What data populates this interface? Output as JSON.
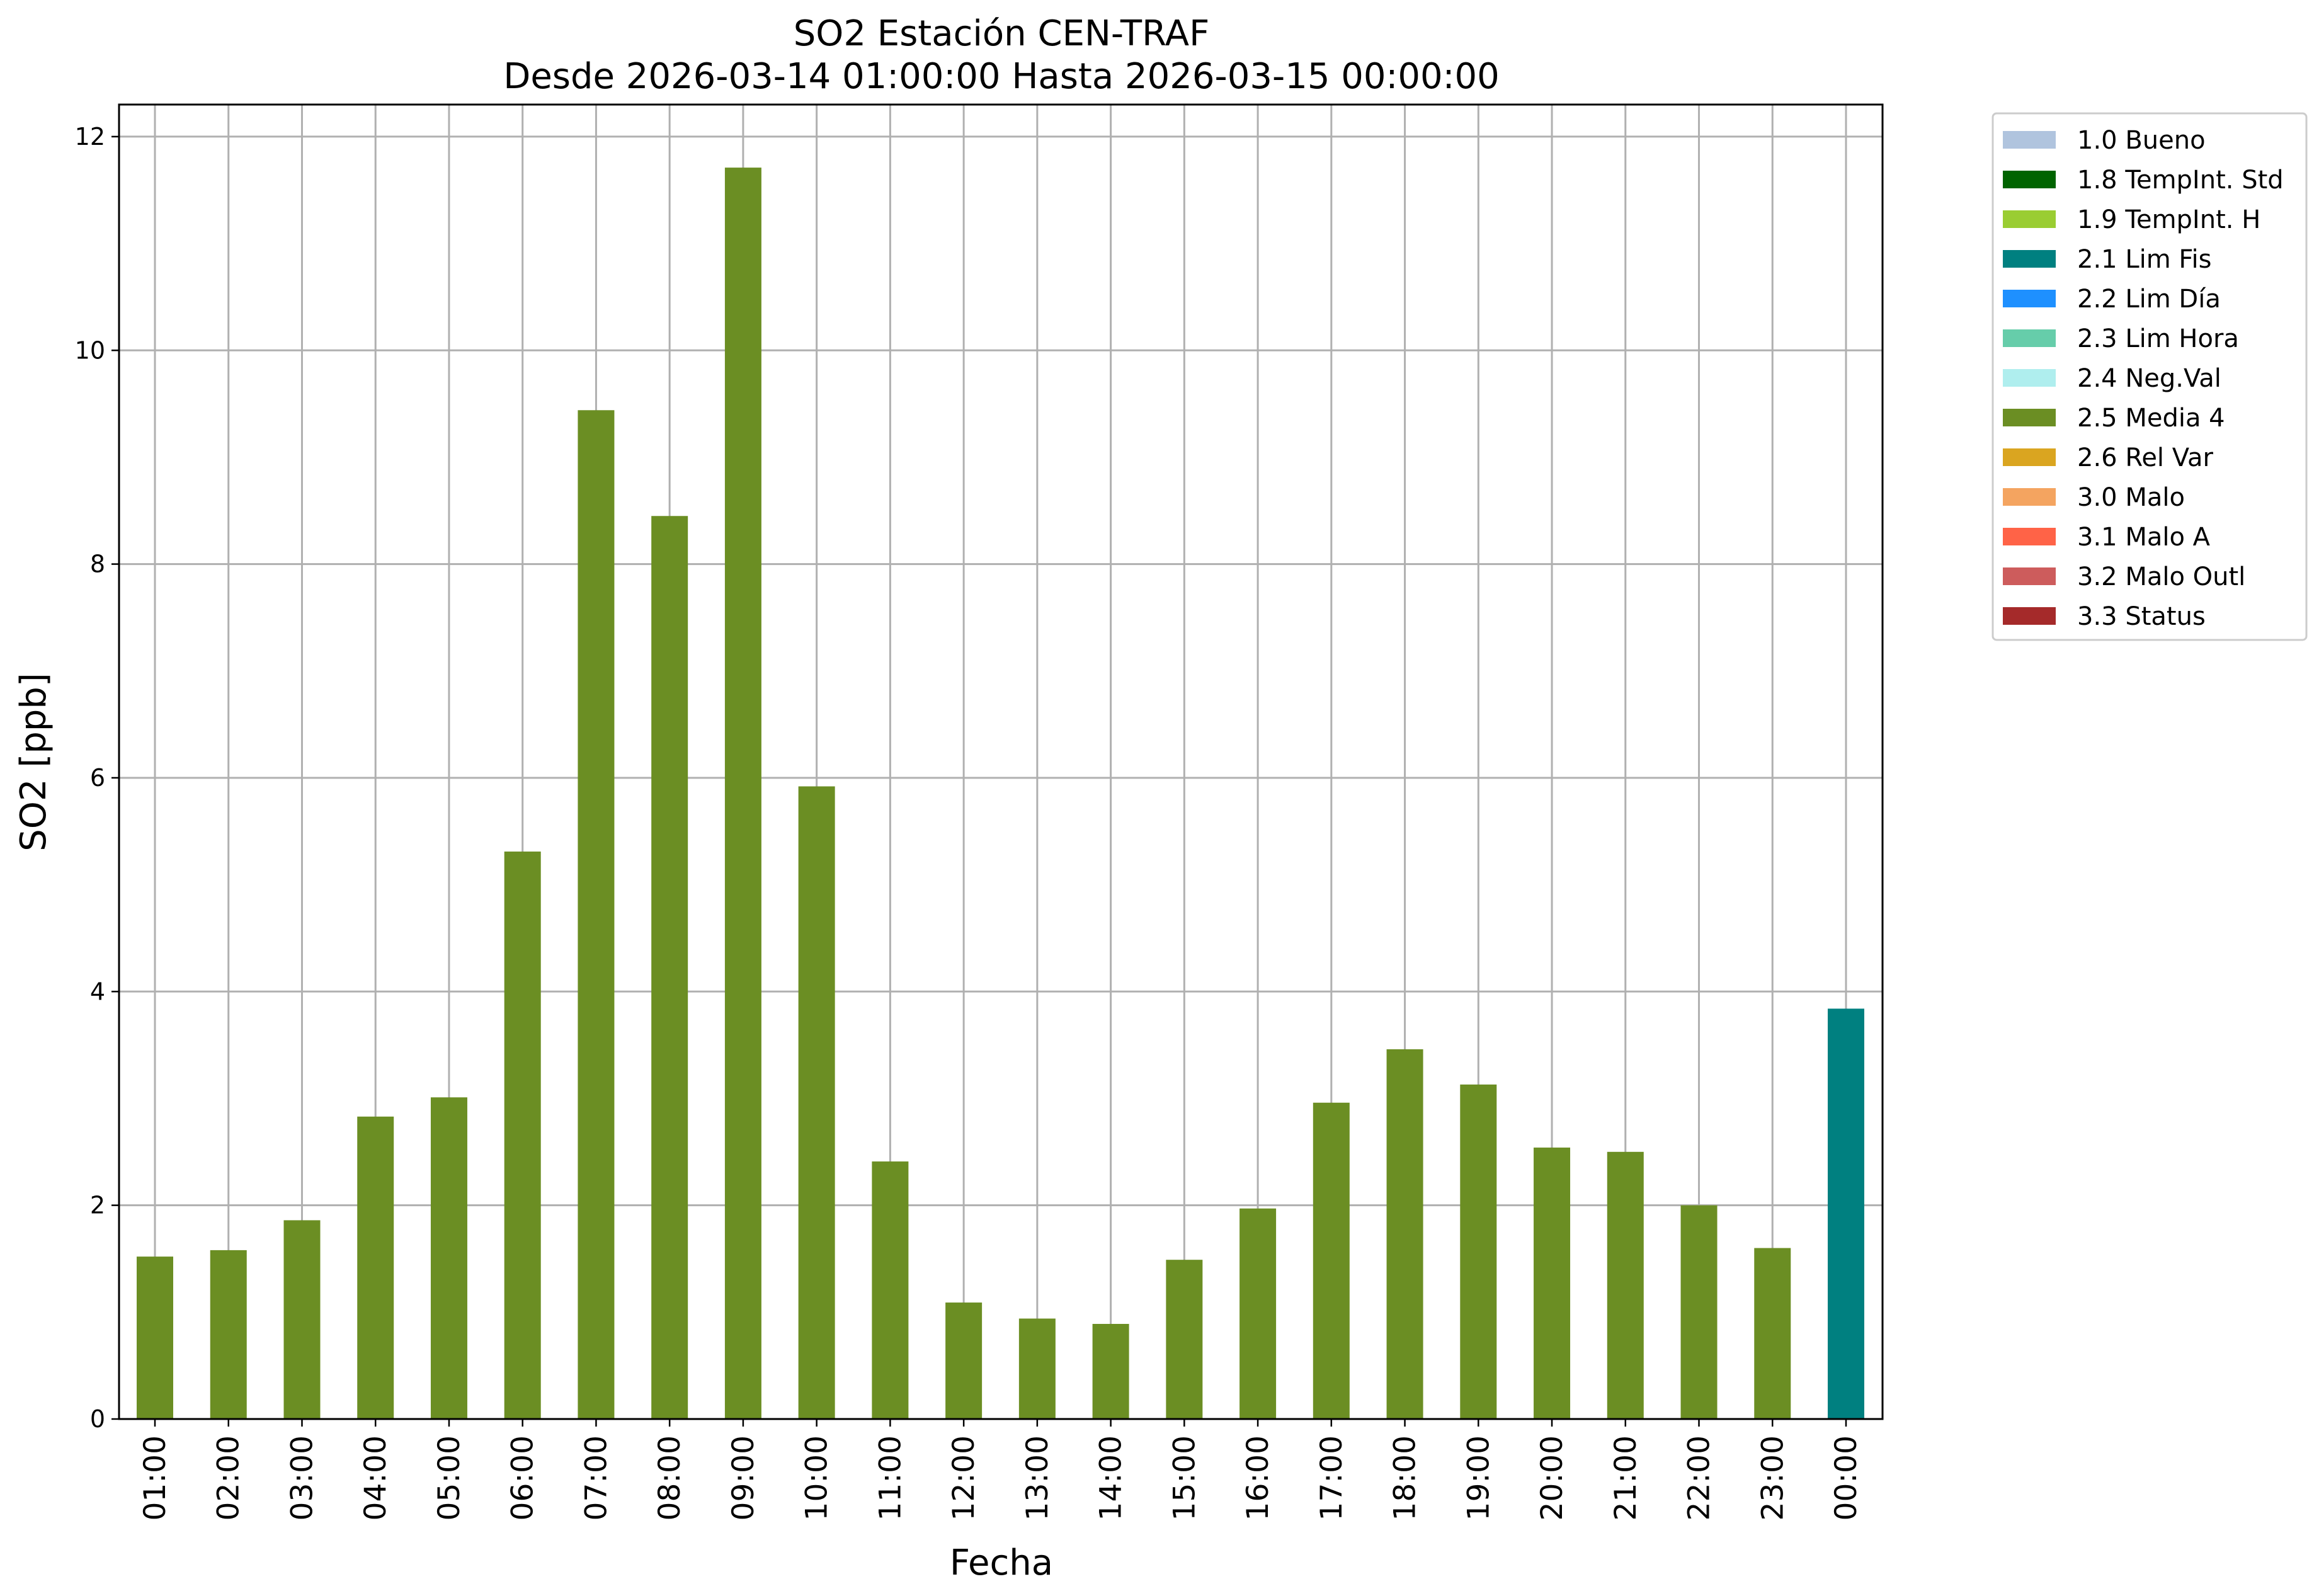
{
  "chart_data": {
    "type": "bar",
    "title": "SO2 Estación CEN-TRAF",
    "subtitle": "Desde 2026-03-14 01:00:00 Hasta 2026-03-15 00:00:00",
    "xlabel": "Fecha",
    "ylabel": "SO2 [ppb]",
    "ylim": [
      0,
      12.3
    ],
    "yticks": [
      0,
      2,
      4,
      6,
      8,
      10,
      12
    ],
    "grid": true,
    "legend_position": "outside-top-right",
    "categories": [
      "01:00",
      "02:00",
      "03:00",
      "04:00",
      "05:00",
      "06:00",
      "07:00",
      "08:00",
      "09:00",
      "10:00",
      "11:00",
      "12:00",
      "13:00",
      "14:00",
      "15:00",
      "16:00",
      "17:00",
      "18:00",
      "19:00",
      "20:00",
      "21:00",
      "22:00",
      "23:00",
      "00:00"
    ],
    "values": [
      1.52,
      1.58,
      1.86,
      2.83,
      3.01,
      5.31,
      9.44,
      8.45,
      11.71,
      5.92,
      2.41,
      1.09,
      0.94,
      0.89,
      1.49,
      1.97,
      2.96,
      3.46,
      3.13,
      2.54,
      2.5,
      2.0,
      1.6,
      3.84
    ],
    "bar_flags": [
      "2.5 Media 4",
      "2.5 Media 4",
      "2.5 Media 4",
      "2.5 Media 4",
      "2.5 Media 4",
      "2.5 Media 4",
      "2.5 Media 4",
      "2.5 Media 4",
      "2.5 Media 4",
      "2.5 Media 4",
      "2.5 Media 4",
      "2.5 Media 4",
      "2.5 Media 4",
      "2.5 Media 4",
      "2.5 Media 4",
      "2.5 Media 4",
      "2.5 Media 4",
      "2.5 Media 4",
      "2.5 Media 4",
      "2.5 Media 4",
      "2.5 Media 4",
      "2.5 Media 4",
      "2.5 Media 4",
      "2.1 Lim Fis"
    ],
    "legend": [
      {
        "label": "1.0 Bueno",
        "color": "#b0c4de"
      },
      {
        "label": "1.8 TempInt. Std",
        "color": "#006400"
      },
      {
        "label": "1.9 TempInt. H",
        "color": "#9acd32"
      },
      {
        "label": "2.1 Lim Fis",
        "color": "#008080"
      },
      {
        "label": "2.2 Lim Día",
        "color": "#1e90ff"
      },
      {
        "label": "2.3 Lim Hora",
        "color": "#66cdaa"
      },
      {
        "label": "2.4 Neg.Val",
        "color": "#afeeee"
      },
      {
        "label": "2.5 Media 4",
        "color": "#6b8e23"
      },
      {
        "label": "2.6 Rel Var",
        "color": "#daa520"
      },
      {
        "label": "3.0 Malo",
        "color": "#f4a460"
      },
      {
        "label": "3.1 Malo A",
        "color": "#ff6347"
      },
      {
        "label": "3.2 Malo Outl",
        "color": "#cd5c5c"
      },
      {
        "label": "3.3 Status",
        "color": "#a52a2a"
      }
    ]
  }
}
